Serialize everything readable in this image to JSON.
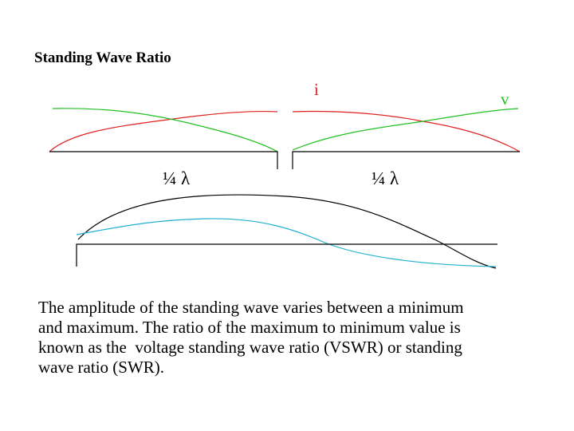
{
  "slide": {
    "title": "Standing Wave Ratio",
    "labels": {
      "current": "i",
      "voltage": "v",
      "quarter_wave_left": "¼ λ",
      "quarter_wave_right": "¼ λ"
    },
    "description_lines": [
      "The amplitude of the standing wave varies between a minimum",
      "and maximum. The ratio of the maximum to minimum value is",
      "known as the  voltage standing wave ratio (VSWR) or standing",
      "wave ratio (SWR)."
    ]
  },
  "colors": {
    "current_curve": "#e02020",
    "voltage_curve": "#22c022",
    "combined_curve": "#000000",
    "reflected_curve": "#20b0d0",
    "baseline": "#000000"
  }
}
